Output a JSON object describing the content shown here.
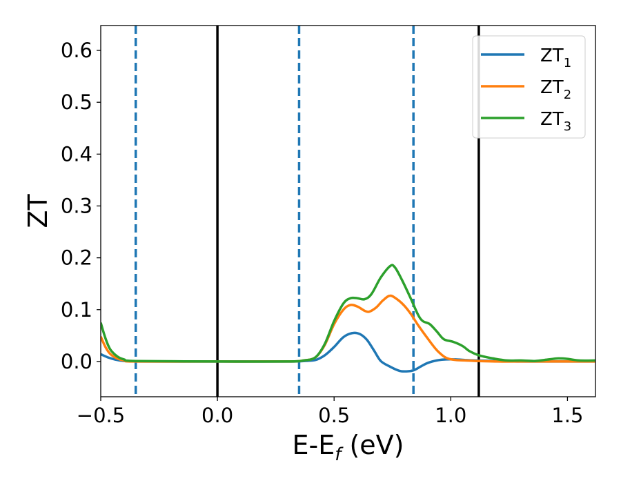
{
  "chart_data": {
    "type": "line",
    "xlabel": {
      "main": "E-E",
      "sub": "f",
      "suffix": " (eV)"
    },
    "ylabel": "ZT",
    "xlim": [
      -0.5,
      1.62
    ],
    "ylim": [
      -0.068,
      0.648
    ],
    "xticks": [
      {
        "value": -0.5,
        "label": "−0.5"
      },
      {
        "value": 0.0,
        "label": "0.0"
      },
      {
        "value": 0.5,
        "label": "0.5"
      },
      {
        "value": 1.0,
        "label": "1.0"
      },
      {
        "value": 1.5,
        "label": "1.5"
      }
    ],
    "yticks": [
      {
        "value": 0.0,
        "label": "0.0"
      },
      {
        "value": 0.1,
        "label": "0.1"
      },
      {
        "value": 0.2,
        "label": "0.2"
      },
      {
        "value": 0.3,
        "label": "0.3"
      },
      {
        "value": 0.4,
        "label": "0.4"
      },
      {
        "value": 0.5,
        "label": "0.5"
      },
      {
        "value": 0.6,
        "label": "0.6"
      }
    ],
    "grid": false,
    "legend_position": "top-right",
    "vlines_solid": [
      0.0,
      1.12
    ],
    "vlines_dashed": [
      -0.35,
      0.35,
      0.84
    ],
    "vline_solid_color": "#000000",
    "vline_dashed_color": "#1f77b4",
    "series": [
      {
        "name": "ZT",
        "sub": "1",
        "color": "#1f77b4",
        "points": [
          [
            -0.5,
            0.014
          ],
          [
            -0.47,
            0.008
          ],
          [
            -0.44,
            0.004
          ],
          [
            -0.4,
            0.001
          ],
          [
            -0.3,
            0.0
          ],
          [
            0.0,
            0.0
          ],
          [
            0.3,
            0.0
          ],
          [
            0.37,
            0.001
          ],
          [
            0.42,
            0.003
          ],
          [
            0.46,
            0.012
          ],
          [
            0.5,
            0.028
          ],
          [
            0.54,
            0.047
          ],
          [
            0.58,
            0.055
          ],
          [
            0.61,
            0.053
          ],
          [
            0.64,
            0.042
          ],
          [
            0.67,
            0.022
          ],
          [
            0.7,
            0.001
          ],
          [
            0.74,
            -0.01
          ],
          [
            0.78,
            -0.018
          ],
          [
            0.81,
            -0.019
          ],
          [
            0.84,
            -0.017
          ],
          [
            0.87,
            -0.01
          ],
          [
            0.9,
            -0.003
          ],
          [
            0.94,
            0.002
          ],
          [
            0.98,
            0.004
          ],
          [
            1.02,
            0.004
          ],
          [
            1.06,
            0.003
          ],
          [
            1.1,
            0.002
          ],
          [
            1.2,
            0.001
          ],
          [
            1.3,
            0.0
          ],
          [
            1.45,
            0.0
          ],
          [
            1.62,
            0.0
          ]
        ]
      },
      {
        "name": "ZT",
        "sub": "2",
        "color": "#ff7f0e",
        "points": [
          [
            -0.5,
            0.048
          ],
          [
            -0.48,
            0.028
          ],
          [
            -0.46,
            0.015
          ],
          [
            -0.43,
            0.006
          ],
          [
            -0.4,
            0.002
          ],
          [
            -0.35,
            0.0
          ],
          [
            0.0,
            0.0
          ],
          [
            0.3,
            0.0
          ],
          [
            0.37,
            0.002
          ],
          [
            0.42,
            0.008
          ],
          [
            0.46,
            0.032
          ],
          [
            0.5,
            0.072
          ],
          [
            0.54,
            0.1
          ],
          [
            0.57,
            0.109
          ],
          [
            0.6,
            0.106
          ],
          [
            0.63,
            0.098
          ],
          [
            0.65,
            0.096
          ],
          [
            0.68,
            0.104
          ],
          [
            0.71,
            0.118
          ],
          [
            0.74,
            0.127
          ],
          [
            0.77,
            0.12
          ],
          [
            0.8,
            0.108
          ],
          [
            0.83,
            0.091
          ],
          [
            0.86,
            0.07
          ],
          [
            0.9,
            0.045
          ],
          [
            0.94,
            0.022
          ],
          [
            0.98,
            0.007
          ],
          [
            1.02,
            0.003
          ],
          [
            1.06,
            0.002
          ],
          [
            1.12,
            0.001
          ],
          [
            1.2,
            0.0
          ],
          [
            1.3,
            0.0
          ],
          [
            1.62,
            0.0
          ]
        ]
      },
      {
        "name": "ZT",
        "sub": "3",
        "color": "#2ca02c",
        "points": [
          [
            -0.5,
            0.075
          ],
          [
            -0.48,
            0.045
          ],
          [
            -0.46,
            0.024
          ],
          [
            -0.43,
            0.01
          ],
          [
            -0.4,
            0.004
          ],
          [
            -0.35,
            0.001
          ],
          [
            0.0,
            0.0
          ],
          [
            0.3,
            0.0
          ],
          [
            0.37,
            0.002
          ],
          [
            0.42,
            0.008
          ],
          [
            0.46,
            0.034
          ],
          [
            0.5,
            0.078
          ],
          [
            0.54,
            0.112
          ],
          [
            0.57,
            0.122
          ],
          [
            0.6,
            0.122
          ],
          [
            0.63,
            0.12
          ],
          [
            0.66,
            0.13
          ],
          [
            0.7,
            0.162
          ],
          [
            0.74,
            0.184
          ],
          [
            0.76,
            0.182
          ],
          [
            0.79,
            0.158
          ],
          [
            0.83,
            0.12
          ],
          [
            0.86,
            0.09
          ],
          [
            0.88,
            0.078
          ],
          [
            0.91,
            0.072
          ],
          [
            0.94,
            0.058
          ],
          [
            0.97,
            0.043
          ],
          [
            1.01,
            0.038
          ],
          [
            1.05,
            0.03
          ],
          [
            1.08,
            0.02
          ],
          [
            1.12,
            0.012
          ],
          [
            1.18,
            0.006
          ],
          [
            1.24,
            0.002
          ],
          [
            1.3,
            0.002
          ],
          [
            1.36,
            0.001
          ],
          [
            1.42,
            0.004
          ],
          [
            1.46,
            0.006
          ],
          [
            1.5,
            0.005
          ],
          [
            1.55,
            0.002
          ],
          [
            1.62,
            0.002
          ]
        ]
      }
    ]
  }
}
